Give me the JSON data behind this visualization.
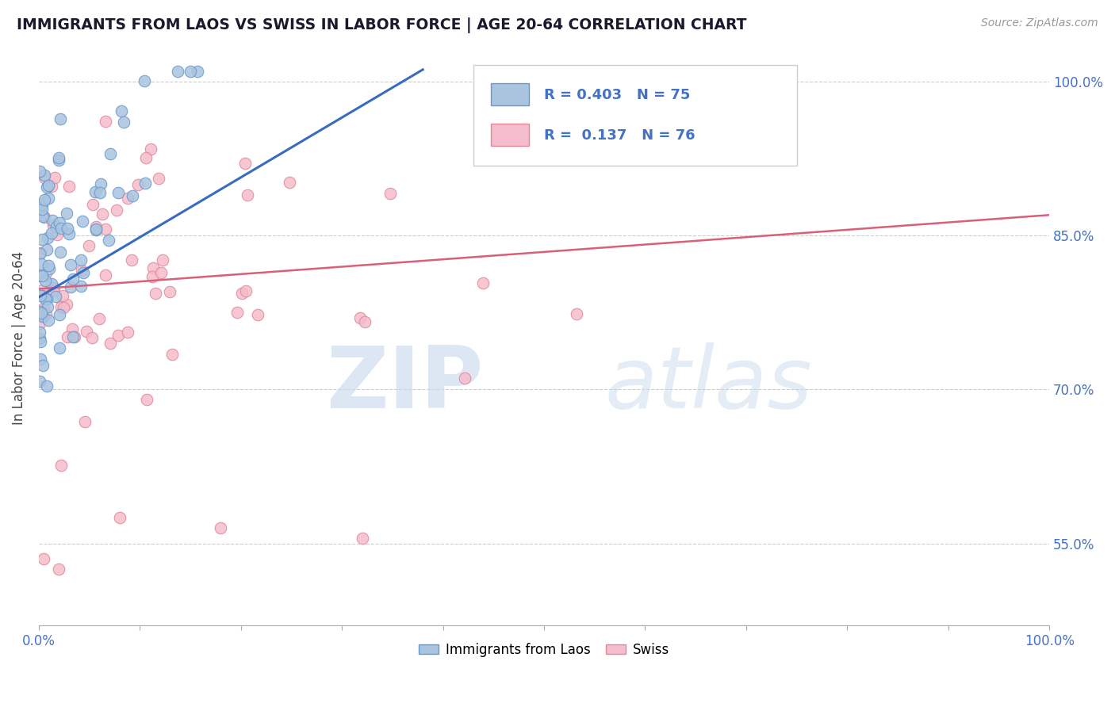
{
  "title": "IMMIGRANTS FROM LAOS VS SWISS IN LABOR FORCE | AGE 20-64 CORRELATION CHART",
  "source_text": "Source: ZipAtlas.com",
  "ylabel": "In Labor Force | Age 20-64",
  "xlim": [
    0.0,
    1.0
  ],
  "ylim": [
    0.47,
    1.03
  ],
  "ytick_positions": [
    0.55,
    0.7,
    0.85,
    1.0
  ],
  "ytick_labels": [
    "55.0%",
    "70.0%",
    "85.0%",
    "100.0%"
  ],
  "series1_color": "#aac4e0",
  "series1_edge": "#6699cc",
  "series2_color": "#f5bccb",
  "series2_edge": "#e08898",
  "trend1_color": "#3a6bbf",
  "trend2_color": "#d9607a",
  "R1": 0.403,
  "N1": 75,
  "R2": 0.137,
  "N2": 76,
  "grid_color": "#cccccc",
  "title_color": "#1a1a2e",
  "axis_label_color": "#4472c4",
  "legend_label1": "Immigrants from Laos",
  "legend_label2": "Swiss"
}
